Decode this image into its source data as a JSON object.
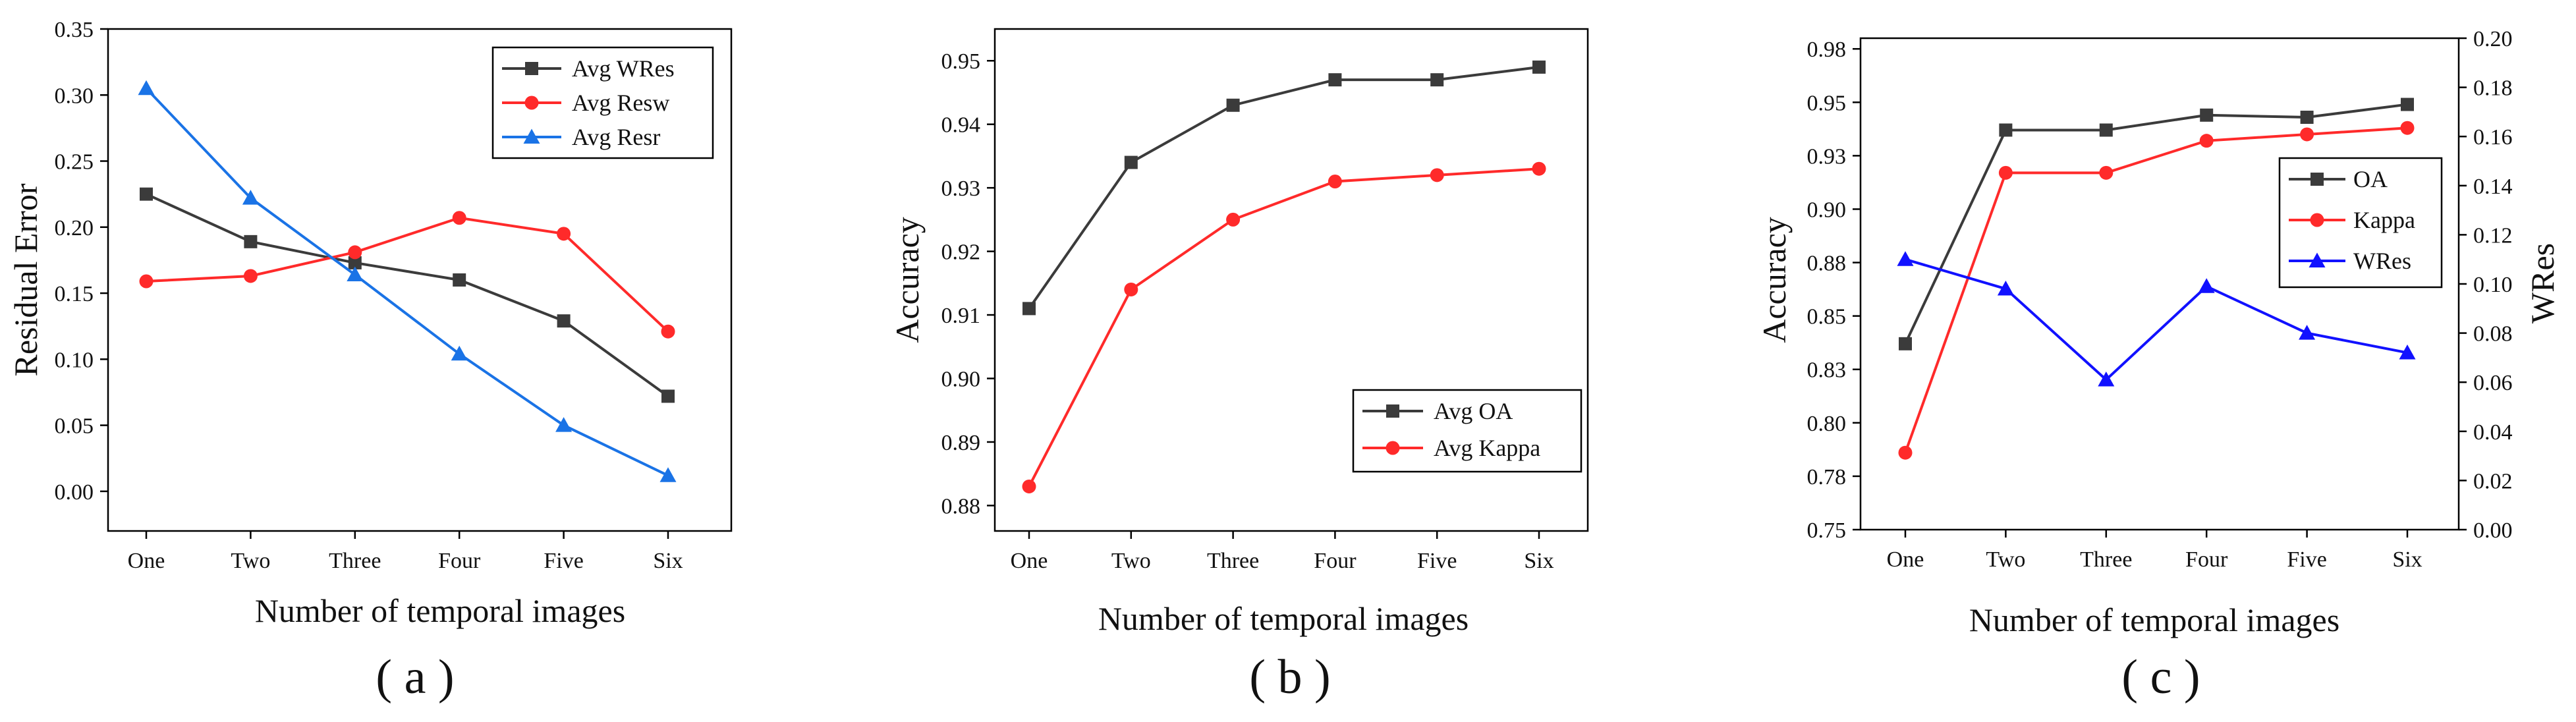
{
  "figure": {
    "colors": {
      "black": "#3b3b3b",
      "red": "#ff2a2a",
      "blue": "#1a73e6",
      "navy": "#1111ff"
    }
  },
  "chart_data": [
    {
      "type": "line",
      "caption": "( a )",
      "xlabel": "Number of temporal images",
      "ylabel": "Residual Error",
      "categories": [
        "One",
        "Two",
        "Three",
        "Four",
        "Five",
        "Six"
      ],
      "ylim": [
        -0.03,
        0.35
      ],
      "yticks": [
        "0.00",
        "0.05",
        "0.10",
        "0.15",
        "0.20",
        "0.25",
        "0.30",
        "0.35"
      ],
      "ytick_values": [
        0,
        0.05,
        0.1,
        0.15,
        0.2,
        0.25,
        0.3,
        0.35
      ],
      "legend_position": "top-right",
      "series": [
        {
          "name": "Avg WRes",
          "marker": "square",
          "color": "#3b3b3b",
          "values": [
            0.225,
            0.189,
            0.173,
            0.16,
            0.129,
            0.072
          ]
        },
        {
          "name": "Avg Resw",
          "marker": "circle",
          "color": "#ff2a2a",
          "values": [
            0.159,
            0.163,
            0.181,
            0.207,
            0.195,
            0.121
          ]
        },
        {
          "name": "Avg Resr",
          "marker": "triangle",
          "color": "#1a73e6",
          "values": [
            0.305,
            0.222,
            0.164,
            0.104,
            0.05,
            0.012
          ]
        }
      ]
    },
    {
      "type": "line",
      "caption": "( b )",
      "xlabel": "Number of temporal images",
      "ylabel": "Accuracy",
      "categories": [
        "One",
        "Two",
        "Three",
        "Four",
        "Five",
        "Six"
      ],
      "ylim": [
        0.876,
        0.955
      ],
      "yticks": [
        "0.88",
        "0.89",
        "0.90",
        "0.91",
        "0.92",
        "0.93",
        "0.94",
        "0.95"
      ],
      "ytick_values": [
        0.88,
        0.89,
        0.9,
        0.91,
        0.92,
        0.93,
        0.94,
        0.95
      ],
      "legend_position": "bottom-right",
      "series": [
        {
          "name": "Avg OA",
          "marker": "square",
          "color": "#3b3b3b",
          "values": [
            0.911,
            0.934,
            0.943,
            0.947,
            0.947,
            0.949
          ]
        },
        {
          "name": "Avg Kappa",
          "marker": "circle",
          "color": "#ff2a2a",
          "values": [
            0.883,
            0.914,
            0.925,
            0.931,
            0.932,
            0.933
          ]
        }
      ]
    },
    {
      "type": "line",
      "caption": "( c )",
      "xlabel": "Number of temporal images",
      "ylabel": "Accuracy",
      "y2label": "WRes",
      "categories": [
        "One",
        "Two",
        "Three",
        "Four",
        "Five",
        "Six"
      ],
      "ylim": [
        0.75,
        0.98
      ],
      "yticks": [
        "0.75",
        "0.78",
        "0.80",
        "0.83",
        "0.85",
        "0.88",
        "0.90",
        "0.93",
        "0.95",
        "0.98"
      ],
      "ytick_values": [
        0.75,
        0.775,
        0.8,
        0.825,
        0.85,
        0.875,
        0.9,
        0.925,
        0.95,
        0.975
      ],
      "y2lim": [
        0,
        0.2
      ],
      "y2ticks": [
        "0.00",
        "0.02",
        "0.04",
        "0.06",
        "0.08",
        "0.10",
        "0.12",
        "0.14",
        "0.16",
        "0.18",
        "0.20"
      ],
      "y2tick_values": [
        0,
        0.02,
        0.04,
        0.06,
        0.08,
        0.1,
        0.12,
        0.14,
        0.16,
        0.18,
        0.2
      ],
      "legend_position": "top-right",
      "series": [
        {
          "name": "OA",
          "marker": "square",
          "color": "#3b3b3b",
          "axis": "left",
          "values": [
            0.837,
            0.937,
            0.937,
            0.944,
            0.943,
            0.949
          ]
        },
        {
          "name": "Kappa",
          "marker": "circle",
          "color": "#ff2a2a",
          "axis": "left",
          "values": [
            0.786,
            0.917,
            0.917,
            0.932,
            0.935,
            0.938
          ]
        },
        {
          "name": "WRes",
          "marker": "triangle",
          "color": "#1111ff",
          "axis": "right",
          "values": [
            0.11,
            0.098,
            0.061,
            0.099,
            0.08,
            0.072
          ]
        }
      ]
    }
  ]
}
